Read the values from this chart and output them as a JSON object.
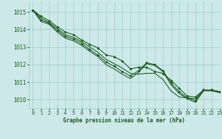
{
  "bg_color": "#cce8e8",
  "grid_color": "#99cccc",
  "line_color": "#1a5c1a",
  "text_color": "#1a5c1a",
  "xlabel": "Graphe pression niveau de la mer (hPa)",
  "xlim": [
    -0.5,
    23
  ],
  "ylim": [
    1009.5,
    1015.6
  ],
  "yticks": [
    1010,
    1011,
    1012,
    1013,
    1014,
    1015
  ],
  "xticks": [
    0,
    1,
    2,
    3,
    4,
    5,
    6,
    7,
    8,
    9,
    10,
    11,
    12,
    13,
    14,
    15,
    16,
    17,
    18,
    19,
    20,
    21,
    22,
    23
  ],
  "series": [
    {
      "y": [
        1015.1,
        1014.75,
        1014.5,
        1014.15,
        1013.85,
        1013.7,
        1013.4,
        1013.15,
        1012.95,
        1012.55,
        1012.45,
        1012.2,
        1011.75,
        1011.85,
        1011.85,
        1011.6,
        1011.5,
        1011.1,
        1010.65,
        1010.2,
        1010.15,
        1010.55,
        1010.55,
        1010.45
      ],
      "marker": true,
      "lw": 0.8
    },
    {
      "y": [
        1015.1,
        1014.65,
        1014.4,
        1014.05,
        1013.7,
        1013.55,
        1013.3,
        1013.0,
        1012.7,
        1012.3,
        1012.05,
        1011.8,
        1011.5,
        1011.45,
        1011.5,
        1011.5,
        1011.15,
        1010.5,
        1010.15,
        1010.1,
        1010.05,
        1010.55,
        1010.55,
        1010.45
      ],
      "marker": false,
      "lw": 0.8
    },
    {
      "y": [
        1015.1,
        1014.55,
        1014.35,
        1013.95,
        1013.6,
        1013.45,
        1013.2,
        1012.85,
        1012.55,
        1012.15,
        1011.9,
        1011.6,
        1011.35,
        1011.65,
        1012.1,
        1012.0,
        1011.65,
        1010.95,
        1010.45,
        1010.1,
        1009.95,
        1010.55,
        1010.55,
        1010.45
      ],
      "marker": true,
      "lw": 0.8
    },
    {
      "y": [
        1015.1,
        1014.45,
        1014.3,
        1013.85,
        1013.5,
        1013.35,
        1013.1,
        1012.75,
        1012.45,
        1012.0,
        1011.75,
        1011.45,
        1011.2,
        1011.55,
        1012.05,
        1011.95,
        1011.6,
        1010.85,
        1010.35,
        1010.05,
        1009.85,
        1010.5,
        1010.5,
        1010.4
      ],
      "marker": false,
      "lw": 0.8
    }
  ],
  "xlabel_fontsize": 5.5,
  "xlabel_fontweight": "bold",
  "tick_fontsize": 5.0,
  "ytick_fontsize": 5.5
}
